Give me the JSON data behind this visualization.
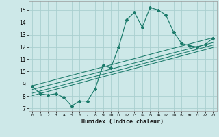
{
  "xlabel": "Humidex (Indice chaleur)",
  "background_color": "#cde8e8",
  "grid_color": "#aacfcf",
  "line_color": "#1a7a6a",
  "x_data": [
    0,
    1,
    2,
    3,
    4,
    5,
    6,
    7,
    8,
    9,
    10,
    11,
    12,
    13,
    14,
    15,
    16,
    17,
    18,
    19,
    20,
    21,
    22,
    23
  ],
  "y_data": [
    8.8,
    8.2,
    8.1,
    8.2,
    7.9,
    7.2,
    7.6,
    7.6,
    8.6,
    10.5,
    10.3,
    12.0,
    14.2,
    14.8,
    13.6,
    15.2,
    15.0,
    14.6,
    13.2,
    12.3,
    12.1,
    12.0,
    12.2,
    12.7
  ],
  "ylim": [
    6.8,
    15.7
  ],
  "xlim": [
    -0.5,
    23.5
  ],
  "yticks": [
    7,
    8,
    9,
    10,
    11,
    12,
    13,
    14,
    15
  ],
  "xticks": [
    0,
    1,
    2,
    3,
    4,
    5,
    6,
    7,
    8,
    9,
    10,
    11,
    12,
    13,
    14,
    15,
    16,
    17,
    18,
    19,
    20,
    21,
    22,
    23
  ],
  "reg_lines": [
    {
      "x_start": 0,
      "y_start": 8.85,
      "x_end": 23,
      "y_end": 12.75
    },
    {
      "x_start": 0,
      "y_start": 8.55,
      "x_end": 23,
      "y_end": 12.35
    },
    {
      "x_start": 0,
      "y_start": 8.25,
      "x_end": 23,
      "y_end": 12.15
    },
    {
      "x_start": 0,
      "y_start": 8.05,
      "x_end": 23,
      "y_end": 11.95
    }
  ]
}
